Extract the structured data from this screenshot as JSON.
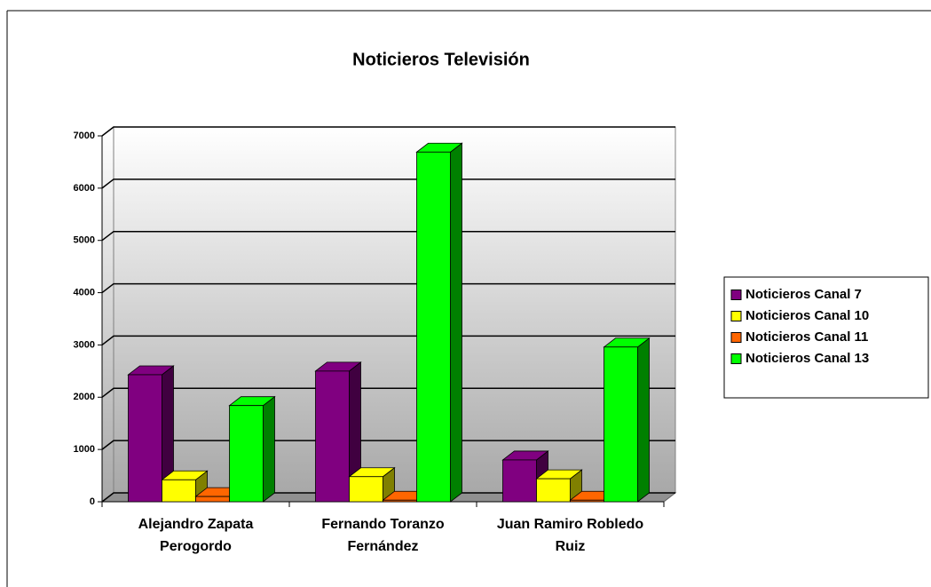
{
  "chart_data": {
    "type": "bar3d",
    "title": "Noticieros Televisión",
    "categories": [
      "Alejandro Zapata Perogordo",
      "Fernando Toranzo Fernández",
      "Juan Ramiro Robledo Ruiz"
    ],
    "series": [
      {
        "name": "Noticieros Canal 7",
        "color": "#800080",
        "side": "#400040",
        "values": [
          2430,
          2500,
          800
        ]
      },
      {
        "name": "Noticieros Canal 10",
        "color": "#ffff00",
        "side": "#808000",
        "values": [
          420,
          480,
          440
        ]
      },
      {
        "name": "Noticieros Canal 11",
        "color": "#ff6600",
        "side": "#993300",
        "values": [
          100,
          30,
          30
        ]
      },
      {
        "name": "Noticieros Canal 13",
        "color": "#00ff00",
        "side": "#008000",
        "values": [
          1840,
          6690,
          2960
        ]
      }
    ],
    "ylim": [
      0,
      7000
    ],
    "yticks": [
      0,
      1000,
      2000,
      3000,
      4000,
      5000,
      6000,
      7000
    ],
    "grid": true,
    "legend": "right"
  }
}
